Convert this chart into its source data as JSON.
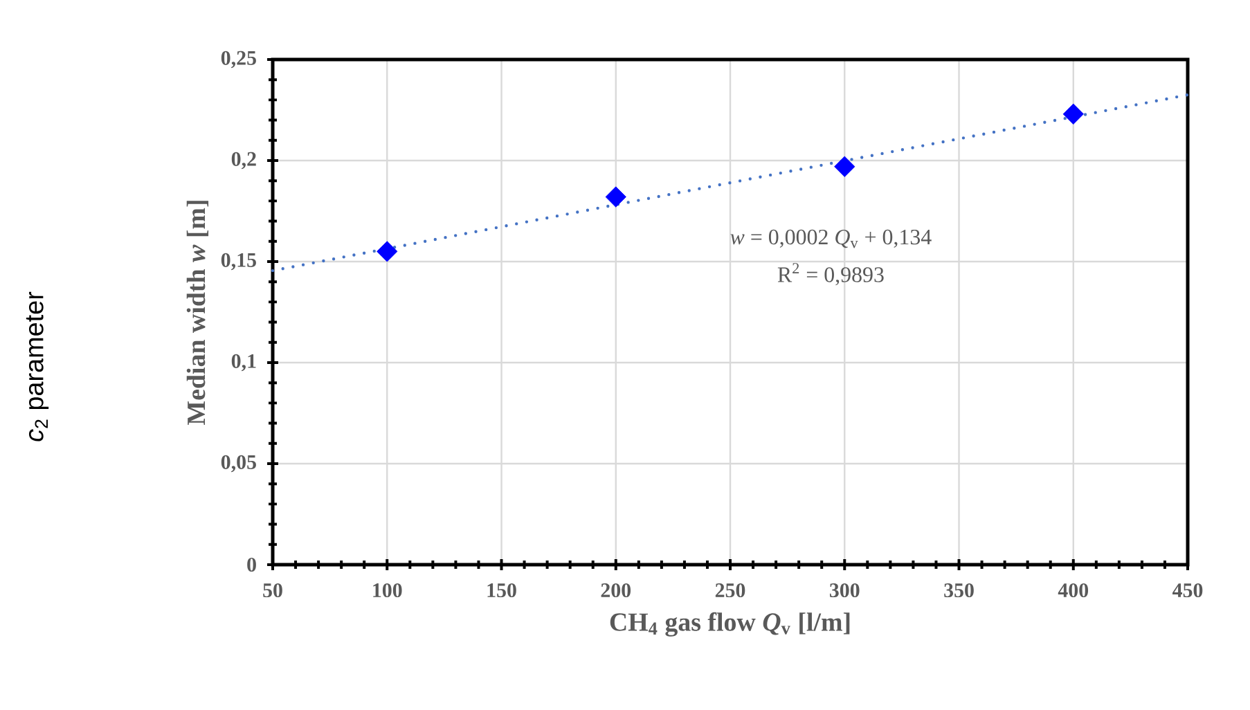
{
  "chart_data": {
    "type": "scatter",
    "xlabel": "CH$_{4}$ gas flow *Q*$_{v}$ [l/m]",
    "ylabel": "Median width *w* [m]",
    "annotations": [
      "*w* = 0,0002 *Q*$_{v}$ + 0,134",
      "R$^{2}$ = 0,9893",
      "*c*$_{2}$ parameter"
    ],
    "series": [
      {
        "color": "#0000ff",
        "marker": "diamond",
        "x": [
          100,
          200,
          300,
          400
        ],
        "values": [
          0.155,
          0.182,
          0.197,
          0.223
        ]
      },
      {
        "type": "line",
        "color": "#4472c4",
        "line_style": "dotted",
        "marker": "none",
        "x": [
          50,
          450
        ],
        "values": [
          0.1455,
          0.2325
        ]
      }
    ],
    "xlim": [
      50,
      450
    ],
    "ylim": [
      0,
      0.25
    ],
    "xticks": [
      50,
      100,
      150,
      200,
      250,
      300,
      350,
      400,
      450
    ],
    "yticks": [
      {
        "value": 0,
        "label": "0"
      },
      {
        "value": 0.05,
        "label": "0,05"
      },
      {
        "value": 0.1,
        "label": "0,1"
      },
      {
        "value": 0.15,
        "label": "0,15"
      },
      {
        "value": 0.2,
        "label": "0,2"
      },
      {
        "value": 0.25,
        "label": "0,25"
      }
    ],
    "grid": true
  }
}
